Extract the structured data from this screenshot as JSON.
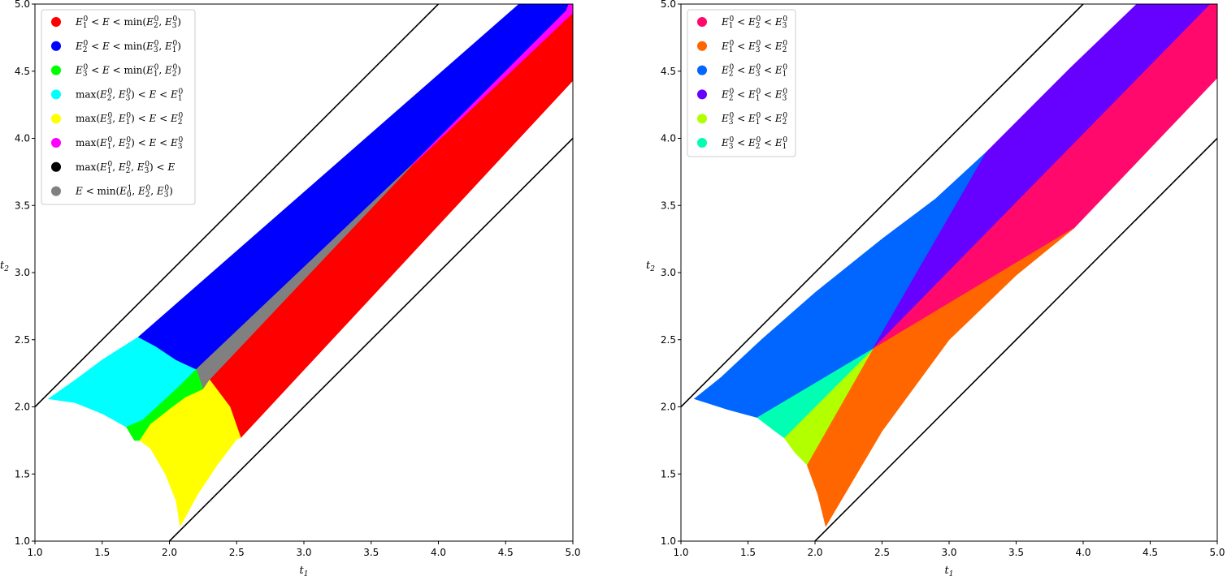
{
  "chart_data": [
    {
      "type": "area",
      "title": "",
      "xlabel": "t₁",
      "ylabel": "t₂",
      "xlim": [
        1.0,
        5.0
      ],
      "ylim": [
        1.0,
        5.0
      ],
      "xticks": [
        "1.0",
        "1.5",
        "2.0",
        "2.5",
        "3.0",
        "3.5",
        "4.0",
        "4.5",
        "5.0"
      ],
      "yticks": [
        "1.0",
        "1.5",
        "2.0",
        "2.5",
        "3.0",
        "3.5",
        "4.0",
        "4.5",
        "5.0"
      ],
      "grid": false,
      "legend_position": "top-left",
      "boundary_lines": [
        {
          "name": "upper",
          "x": [
            1.0,
            4.0
          ],
          "y": [
            2.0,
            5.0
          ]
        },
        {
          "name": "lower",
          "x": [
            2.0,
            5.0
          ],
          "y": [
            1.0,
            4.0
          ]
        }
      ],
      "legend": [
        {
          "label": "E₁⁰ < E < min(E₂⁰, E₃⁰)",
          "color": "#ff0000"
        },
        {
          "label": "E₂⁰ < E < min(E₃⁰, E₁⁰)",
          "color": "#0000ff"
        },
        {
          "label": "E₃⁰ < E < min(E₁⁰, E₂⁰)",
          "color": "#00ff00"
        },
        {
          "label": "max(E₂⁰, E₃⁰) < E < E₁⁰",
          "color": "#00ffff"
        },
        {
          "label": "max(E₃⁰, E₁⁰) < E < E₂⁰",
          "color": "#ffff00"
        },
        {
          "label": "max(E₁⁰, E₂⁰) < E < E₃⁰",
          "color": "#ff00ff"
        },
        {
          "label": "max(E₁⁰, E₂⁰, E₃⁰) < E",
          "color": "#000000"
        },
        {
          "label": "E < min(E₀¹, E₂⁰, E₃⁰)",
          "color": "#808080"
        }
      ],
      "regions": [
        {
          "color": "#00ffff",
          "points": [
            [
              1.1,
              2.06
            ],
            [
              1.3,
              2.2
            ],
            [
              1.5,
              2.35
            ],
            [
              1.77,
              2.52
            ],
            [
              1.9,
              2.45
            ],
            [
              2.05,
              2.35
            ],
            [
              2.2,
              2.28
            ],
            [
              2.07,
              2.15
            ],
            [
              1.93,
              2.02
            ],
            [
              1.8,
              1.9
            ],
            [
              1.68,
              1.85
            ],
            [
              1.5,
              1.95
            ],
            [
              1.3,
              2.03
            ]
          ]
        },
        {
          "color": "#0000ff",
          "points": [
            [
              1.77,
              2.52
            ],
            [
              4.6,
              5.0
            ],
            [
              4.97,
              5.0
            ],
            [
              4.95,
              4.95
            ],
            [
              3.8,
              3.8
            ],
            [
              2.3,
              2.3
            ],
            [
              2.2,
              2.28
            ],
            [
              2.05,
              2.35
            ],
            [
              1.9,
              2.45
            ]
          ]
        },
        {
          "color": "#ff00ff",
          "points": [
            [
              3.8,
              3.8
            ],
            [
              4.95,
              4.95
            ],
            [
              4.97,
              5.0
            ],
            [
              5.0,
              5.0
            ],
            [
              5.0,
              4.93
            ],
            [
              3.8,
              3.79
            ]
          ]
        },
        {
          "color": "#808080",
          "points": [
            [
              2.2,
              2.28
            ],
            [
              3.8,
              3.8
            ],
            [
              3.8,
              3.79
            ],
            [
              2.3,
              2.2
            ],
            [
              2.25,
              2.13
            ]
          ]
        },
        {
          "color": "#00ff00",
          "points": [
            [
              1.68,
              1.85
            ],
            [
              1.8,
              1.9
            ],
            [
              1.93,
              2.02
            ],
            [
              2.07,
              2.15
            ],
            [
              2.2,
              2.28
            ],
            [
              2.25,
              2.13
            ],
            [
              2.12,
              2.07
            ],
            [
              2.0,
              1.98
            ],
            [
              1.86,
              1.87
            ],
            [
              1.78,
              1.75
            ],
            [
              1.74,
              1.75
            ]
          ]
        },
        {
          "color": "#ff0000",
          "points": [
            [
              2.3,
              2.2
            ],
            [
              3.8,
              3.79
            ],
            [
              5.0,
              4.93
            ],
            [
              5.0,
              4.43
            ],
            [
              2.53,
              1.77
            ],
            [
              2.45,
              2.0
            ],
            [
              2.3,
              2.2
            ]
          ]
        },
        {
          "color": "#ffff00",
          "points": [
            [
              1.86,
              1.69
            ],
            [
              1.78,
              1.75
            ],
            [
              1.86,
              1.87
            ],
            [
              2.0,
              1.98
            ],
            [
              2.12,
              2.07
            ],
            [
              2.25,
              2.13
            ],
            [
              2.3,
              2.2
            ],
            [
              2.45,
              2.0
            ],
            [
              2.53,
              1.77
            ],
            [
              2.5,
              1.76
            ],
            [
              2.35,
              1.56
            ],
            [
              2.21,
              1.35
            ],
            [
              2.08,
              1.11
            ],
            [
              2.05,
              1.3
            ],
            [
              1.97,
              1.5
            ]
          ]
        }
      ]
    },
    {
      "type": "area",
      "title": "",
      "xlabel": "t₁",
      "ylabel": "t₂",
      "xlim": [
        1.0,
        5.0
      ],
      "ylim": [
        1.0,
        5.0
      ],
      "xticks": [
        "1.0",
        "1.5",
        "2.0",
        "2.5",
        "3.0",
        "3.5",
        "4.0",
        "4.5",
        "5.0"
      ],
      "yticks": [
        "1.0",
        "1.5",
        "2.0",
        "2.5",
        "3.0",
        "3.5",
        "4.0",
        "4.5",
        "5.0"
      ],
      "grid": false,
      "legend_position": "top-left",
      "boundary_lines": [
        {
          "name": "upper",
          "x": [
            1.0,
            4.0
          ],
          "y": [
            2.0,
            5.0
          ]
        },
        {
          "name": "lower",
          "x": [
            2.0,
            5.0
          ],
          "y": [
            1.0,
            4.0
          ]
        }
      ],
      "legend": [
        {
          "label": "E₁⁰ < E₂⁰ < E₃⁰",
          "color": "#ff0a6c"
        },
        {
          "label": "E₁⁰ < E₃⁰ < E₂⁰",
          "color": "#ff6600"
        },
        {
          "label": "E₂⁰ < E₃⁰ < E₁⁰",
          "color": "#0066ff"
        },
        {
          "label": "E₂⁰ < E₁⁰ < E₃⁰",
          "color": "#6600ff"
        },
        {
          "label": "E₃⁰ < E₁⁰ < E₂⁰",
          "color": "#b2ff00"
        },
        {
          "label": "E₃⁰ < E₂⁰ < E₁⁰",
          "color": "#00ffb2"
        }
      ],
      "regions": [
        {
          "color": "#0066ff",
          "points": [
            [
              1.1,
              2.06
            ],
            [
              1.3,
              2.22
            ],
            [
              1.6,
              2.5
            ],
            [
              2.0,
              2.85
            ],
            [
              2.5,
              3.25
            ],
            [
              2.9,
              3.55
            ],
            [
              3.28,
              3.9
            ],
            [
              2.43,
              2.43
            ],
            [
              1.57,
              1.92
            ],
            [
              1.35,
              1.98
            ]
          ]
        },
        {
          "color": "#6600ff",
          "points": [
            [
              3.28,
              3.9
            ],
            [
              3.9,
              4.52
            ],
            [
              4.4,
              5.0
            ],
            [
              4.95,
              5.0
            ],
            [
              2.43,
              2.43
            ]
          ]
        },
        {
          "color": "#ff0a6c",
          "points": [
            [
              2.43,
              2.43
            ],
            [
              4.95,
              5.0
            ],
            [
              5.0,
              5.0
            ],
            [
              5.0,
              4.45
            ],
            [
              3.93,
              3.33
            ]
          ]
        },
        {
          "color": "#ff6600",
          "points": [
            [
              2.43,
              2.43
            ],
            [
              3.93,
              3.33
            ],
            [
              3.5,
              2.98
            ],
            [
              3.0,
              2.5
            ],
            [
              2.5,
              1.82
            ],
            [
              2.08,
              1.11
            ],
            [
              2.02,
              1.35
            ],
            [
              1.94,
              1.57
            ]
          ]
        },
        {
          "color": "#b2ff00",
          "points": [
            [
              1.77,
              1.77
            ],
            [
              2.43,
              2.43
            ],
            [
              1.94,
              1.57
            ],
            [
              1.85,
              1.66
            ]
          ]
        },
        {
          "color": "#00ffb2",
          "points": [
            [
              1.57,
              1.92
            ],
            [
              2.43,
              2.43
            ],
            [
              1.77,
              1.77
            ],
            [
              1.7,
              1.82
            ]
          ]
        }
      ]
    }
  ]
}
